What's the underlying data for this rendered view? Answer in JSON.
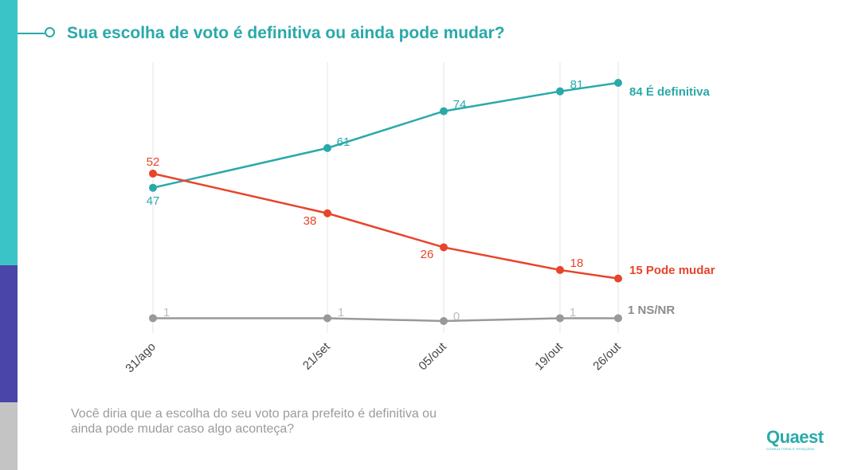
{
  "header": {
    "title": "Sua escolha de voto é definitiva ou ainda pode mudar?"
  },
  "footnote": {
    "line1": "Você diria que a escolha do seu voto para prefeito é definitiva ou",
    "line2": "ainda pode mudar caso algo aconteça?"
  },
  "logo": {
    "text": "Quaest",
    "subtitle": "CONSULTORIA E PESQUISA"
  },
  "colors": {
    "teal": "#2aa9a9",
    "red": "#e8442a",
    "gray": "#999999",
    "sidebar_teal": "#3bc4c8",
    "sidebar_purple": "#4a45a8",
    "sidebar_gray": "#c4c4c4",
    "title": "#2aa9a9"
  },
  "chart_data": {
    "type": "line",
    "title": "Sua escolha de voto é definitiva ou ainda pode mudar?",
    "categories": [
      "31/ago",
      "21/set",
      "05/out",
      "19/out",
      "26/out"
    ],
    "xlabel": "",
    "ylabel": "",
    "ylim": [
      0,
      84
    ],
    "grid": "vertical",
    "series": [
      {
        "name": "É definitiva",
        "color": "#2aa9a9",
        "values": [
          47,
          61,
          74,
          81,
          84
        ],
        "labels": [
          "47",
          "61",
          "74",
          "81",
          "84 É definitiva"
        ]
      },
      {
        "name": "Pode mudar",
        "color": "#e8442a",
        "values": [
          52,
          38,
          26,
          18,
          15
        ],
        "labels": [
          "52",
          "38",
          "26",
          "18",
          "15 Pode mudar"
        ]
      },
      {
        "name": "NS/NR",
        "color": "#999999",
        "values": [
          1,
          1,
          0,
          1,
          1
        ],
        "labels": [
          "1",
          "1",
          "0",
          "1",
          "1 NS/NR"
        ]
      }
    ]
  }
}
